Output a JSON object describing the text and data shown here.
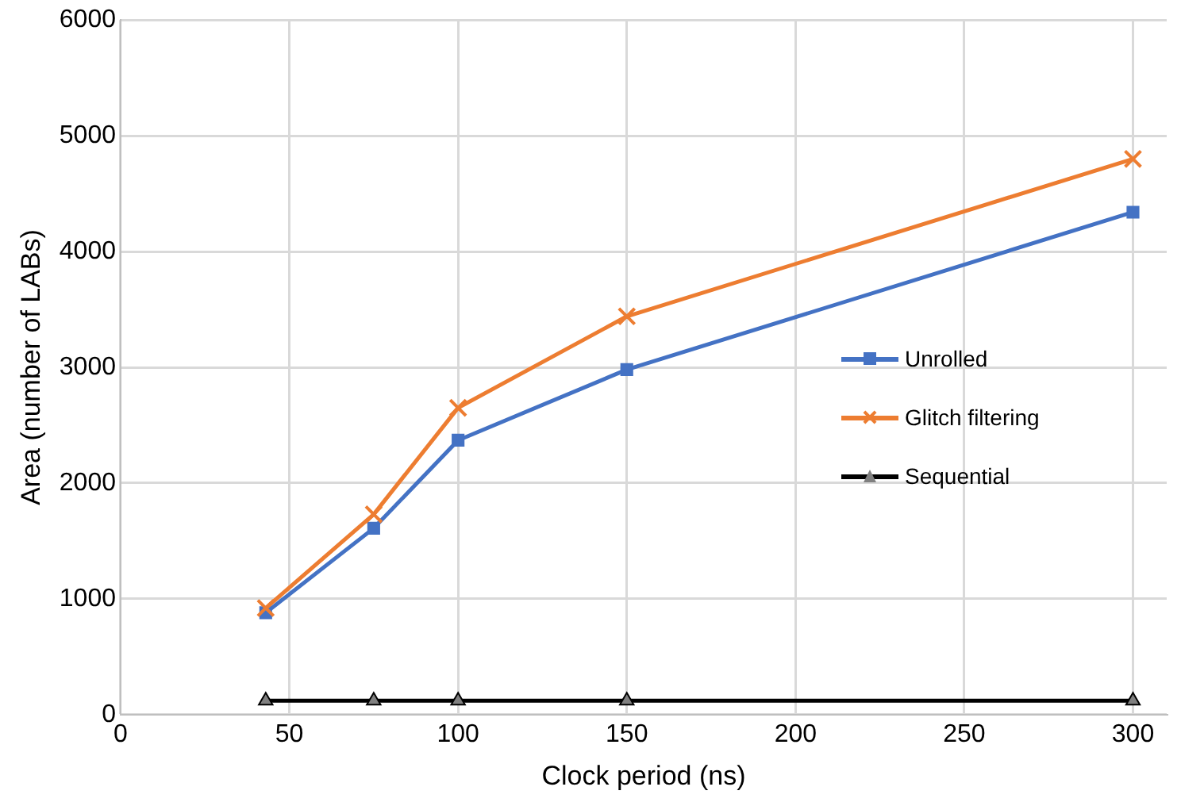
{
  "chart_data": {
    "type": "line",
    "xlabel": "Clock period (ns)",
    "ylabel": "Area (number of LABs)",
    "x": [
      43,
      75,
      100,
      150,
      300
    ],
    "series": [
      {
        "name": "Unrolled",
        "color": "#4472c4",
        "marker": "square",
        "values": [
          880,
          1610,
          2370,
          2980,
          4340
        ]
      },
      {
        "name": "Glitch filtering",
        "color": "#ed7d31",
        "marker": "cross",
        "values": [
          920,
          1730,
          2650,
          3440,
          4800
        ]
      },
      {
        "name": "Sequential",
        "color": "#000000",
        "marker": "triangle",
        "values": [
          120,
          120,
          120,
          120,
          120
        ]
      }
    ],
    "xlim": [
      0,
      310
    ],
    "xticks": [
      0,
      50,
      100,
      150,
      200,
      250,
      300
    ],
    "ylim": [
      0,
      6000
    ],
    "yticks": [
      0,
      1000,
      2000,
      3000,
      4000,
      5000,
      6000
    ],
    "grid": true,
    "legend": "right",
    "line_style": "solid"
  }
}
